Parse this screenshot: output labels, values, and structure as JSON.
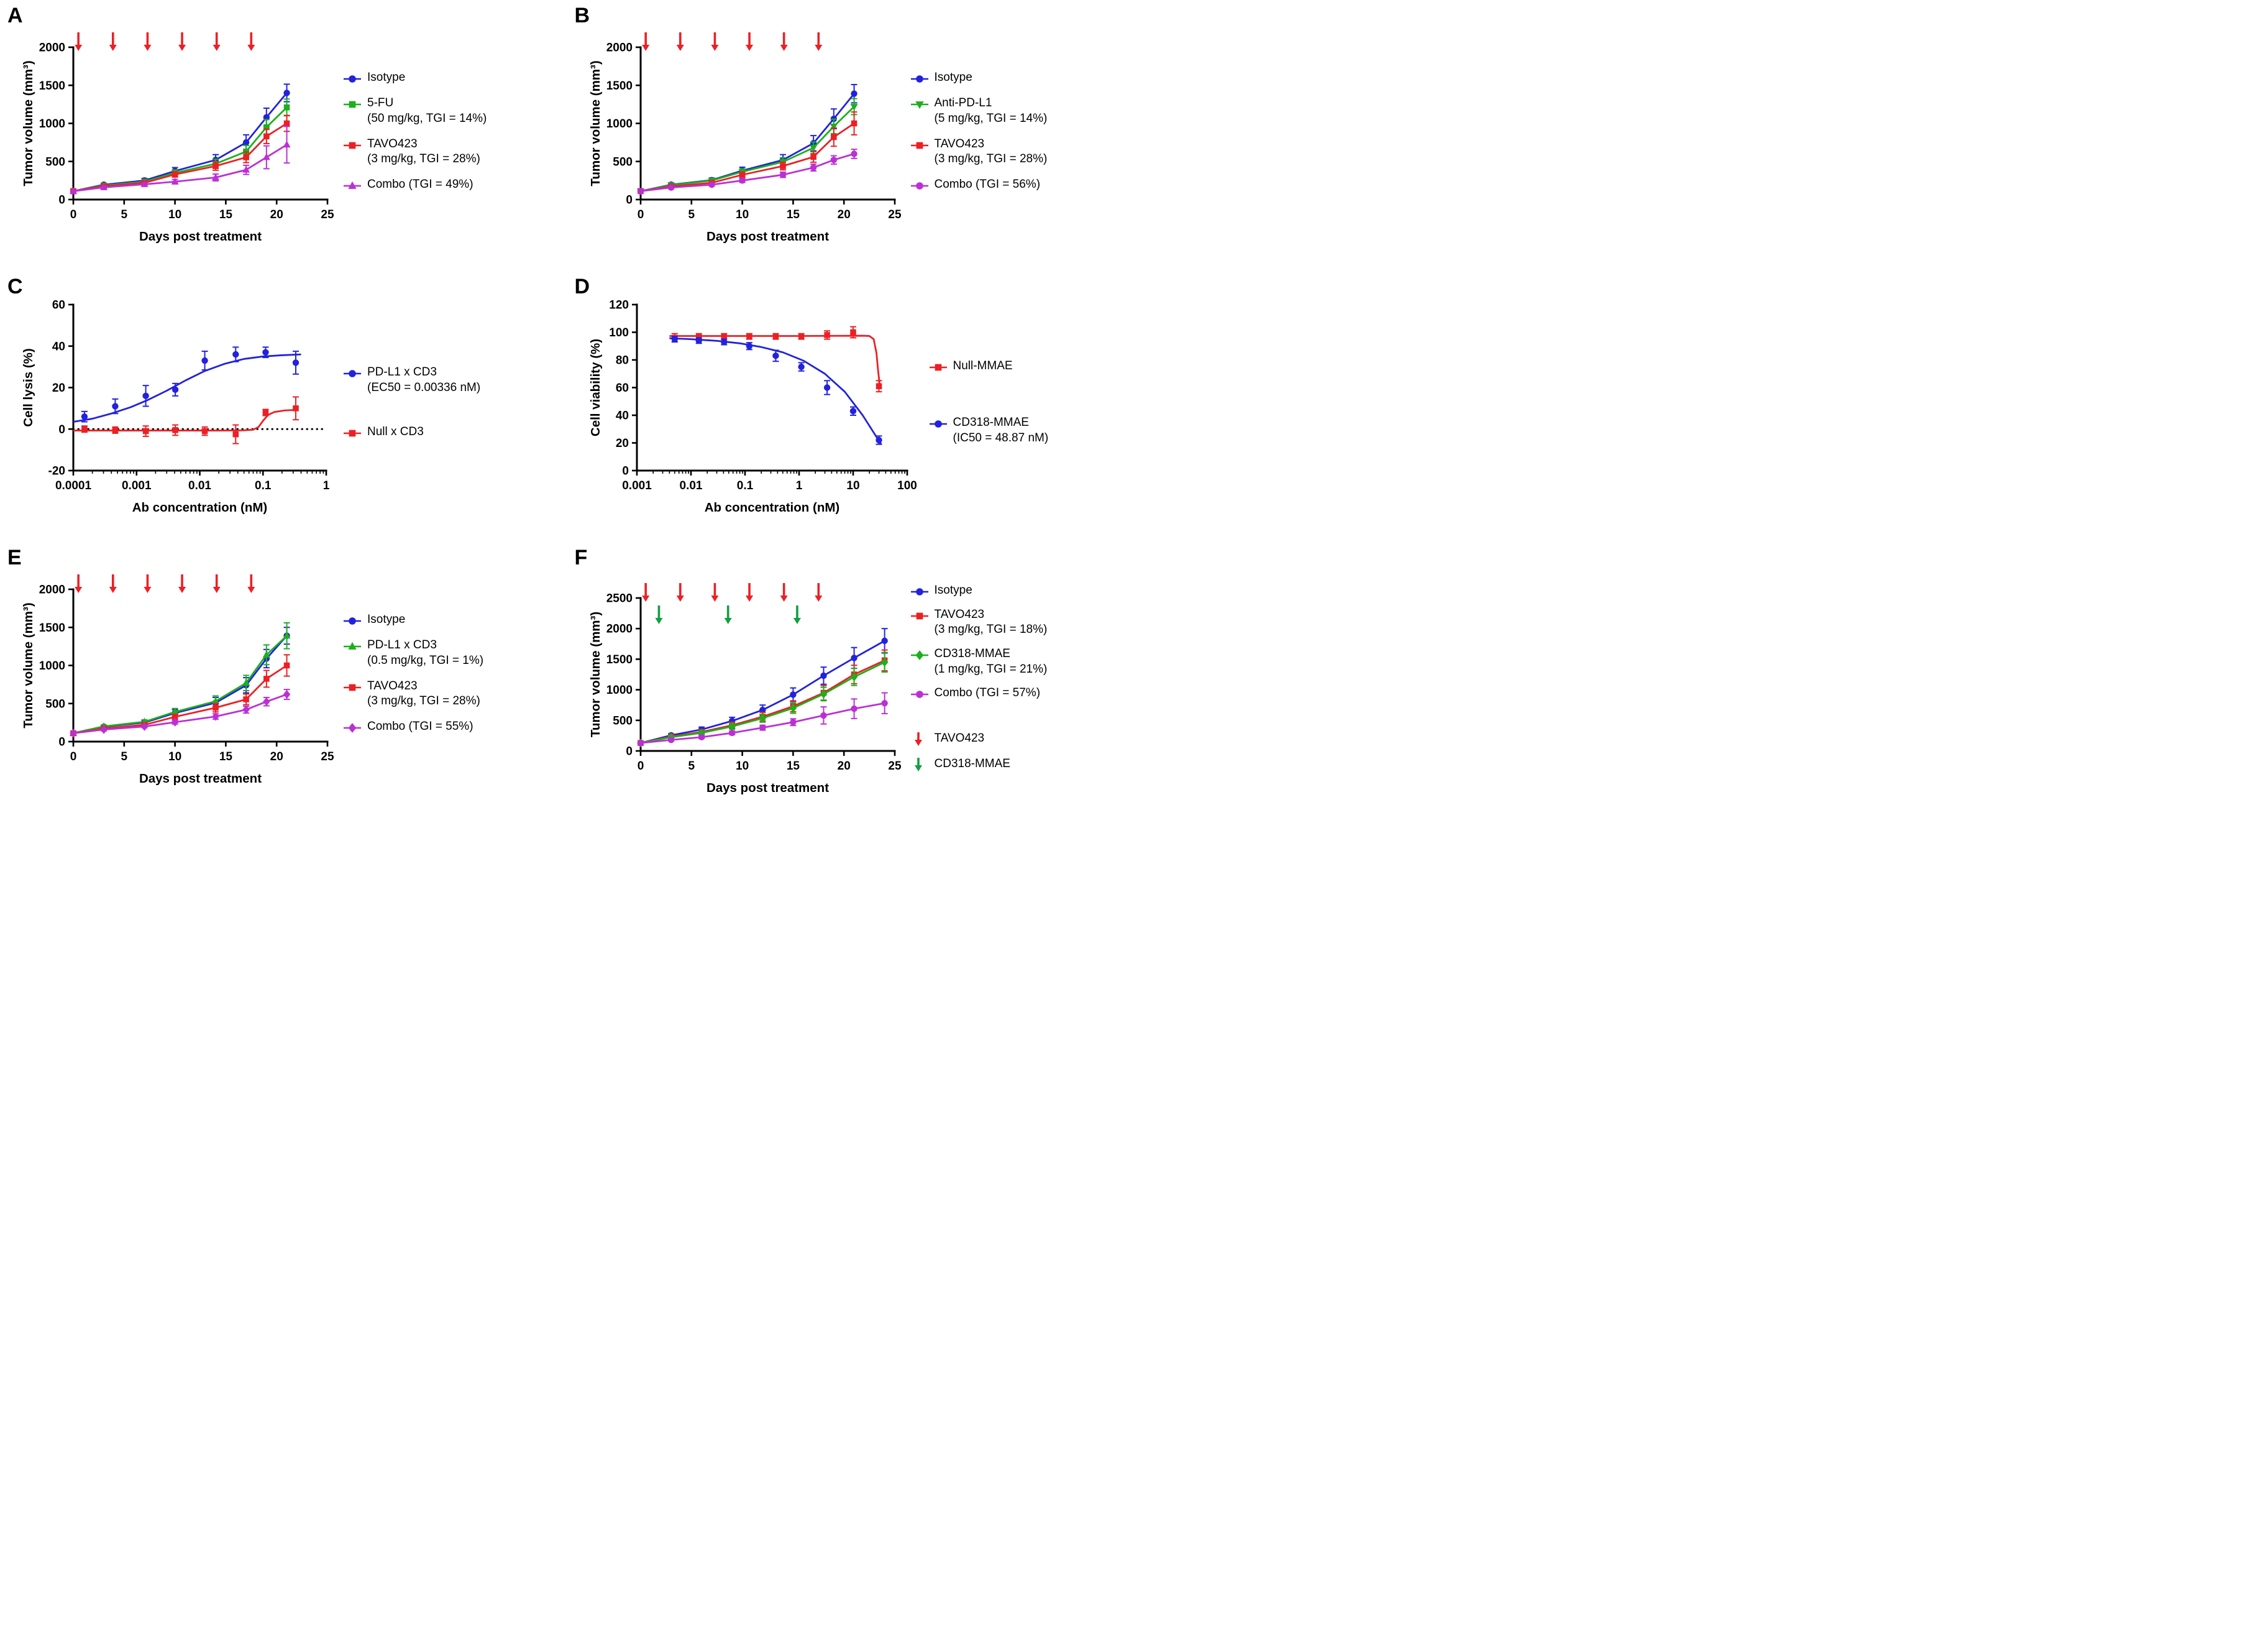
{
  "colors": {
    "blue": "#2222dd",
    "green": "#1cb01c",
    "red": "#ec2024",
    "magenta": "#bb30d5",
    "arrow_green": "#129e44",
    "black": "#000000"
  },
  "chart_data": [
    {
      "letter": "A",
      "type": "line",
      "xlabel": "Days post treatment",
      "ylabel": "Tumor volume (mm³)",
      "xaxis": {
        "type": "linear",
        "min": 0,
        "max": 25,
        "ticks": [
          0,
          5,
          10,
          15,
          20,
          25
        ]
      },
      "yaxis": {
        "min": 0,
        "max": 2000,
        "ticks": [
          0,
          500,
          1000,
          1500,
          2000
        ]
      },
      "dose_arrows": [
        {
          "color": "red",
          "row": 0,
          "x": [
            0.5,
            3.9,
            7.3,
            10.7,
            14.1,
            17.5
          ]
        }
      ],
      "x": [
        0,
        3,
        7,
        10,
        14,
        17,
        19,
        21
      ],
      "series": [
        {
          "name": "Isotype",
          "legend": [
            "Isotype"
          ],
          "color": "blue",
          "marker": "circle",
          "connect": true,
          "values": [
            110,
            195,
            250,
            375,
            520,
            750,
            1080,
            1400
          ],
          "errors": [
            15,
            20,
            28,
            45,
            70,
            100,
            120,
            115
          ]
        },
        {
          "name": "5-FU",
          "legend": [
            "5-FU",
            "(50 mg/kg, TGI = 14%)"
          ],
          "color": "green",
          "marker": "square",
          "connect": true,
          "values": [
            110,
            185,
            235,
            350,
            470,
            630,
            950,
            1210
          ],
          "errors": [
            15,
            18,
            25,
            40,
            60,
            80,
            100,
            110
          ]
        },
        {
          "name": "TAVO423",
          "legend": [
            "TAVO423",
            "(3 mg/kg, TGI = 28%)"
          ],
          "color": "red",
          "marker": "square",
          "connect": true,
          "values": [
            110,
            175,
            220,
            330,
            440,
            555,
            830,
            1000
          ],
          "errors": [
            15,
            16,
            22,
            35,
            55,
            70,
            95,
            105
          ]
        },
        {
          "name": "Combo",
          "legend": [
            "Combo (TGI = 49%)"
          ],
          "color": "magenta",
          "marker": "triangle-up",
          "connect": true,
          "values": [
            110,
            160,
            200,
            235,
            290,
            390,
            555,
            720
          ],
          "errors": [
            12,
            14,
            18,
            30,
            45,
            60,
            150,
            240
          ]
        }
      ],
      "size": [
        515,
        375
      ],
      "margins": {
        "l": 88,
        "r": 18,
        "t": 52,
        "b": 78
      },
      "legend_gap": 16
    },
    {
      "letter": "B",
      "type": "line",
      "xlabel": "Days post treatment",
      "ylabel": "Tumor volume (mm³)",
      "xaxis": {
        "type": "linear",
        "min": 0,
        "max": 25,
        "ticks": [
          0,
          5,
          10,
          15,
          20,
          25
        ]
      },
      "yaxis": {
        "min": 0,
        "max": 2000,
        "ticks": [
          0,
          500,
          1000,
          1500,
          2000
        ]
      },
      "dose_arrows": [
        {
          "color": "red",
          "row": 0,
          "x": [
            0.5,
            3.9,
            7.3,
            10.7,
            14.1,
            17.5
          ]
        }
      ],
      "x": [
        0,
        3,
        7,
        10,
        14,
        17,
        19,
        21
      ],
      "series": [
        {
          "name": "Isotype",
          "legend": [
            "Isotype"
          ],
          "color": "blue",
          "marker": "circle",
          "connect": true,
          "values": [
            110,
            195,
            255,
            380,
            520,
            740,
            1060,
            1390
          ],
          "errors": [
            15,
            20,
            28,
            45,
            70,
            100,
            130,
            120
          ]
        },
        {
          "name": "Anti-PD-L1",
          "legend": [
            "Anti-PD-L1",
            "(5 mg/kg, TGI = 14%)"
          ],
          "color": "green",
          "marker": "triangle-down",
          "connect": true,
          "values": [
            110,
            190,
            250,
            365,
            495,
            680,
            960,
            1220
          ],
          "errors": [
            14,
            18,
            24,
            38,
            55,
            75,
            95,
            105
          ]
        },
        {
          "name": "TAVO423",
          "legend": [
            "TAVO423",
            "(3 mg/kg, TGI = 28%)"
          ],
          "color": "red",
          "marker": "square",
          "connect": true,
          "values": [
            110,
            172,
            220,
            325,
            440,
            560,
            820,
            1000
          ],
          "errors": [
            14,
            16,
            20,
            35,
            50,
            70,
            120,
            150
          ]
        },
        {
          "name": "Combo",
          "legend": [
            "Combo (TGI = 56%)"
          ],
          "color": "magenta",
          "marker": "circle",
          "connect": true,
          "values": [
            110,
            158,
            195,
            250,
            325,
            420,
            520,
            600
          ],
          "errors": [
            12,
            13,
            16,
            25,
            35,
            45,
            55,
            60
          ]
        }
      ],
      "size": [
        515,
        375
      ],
      "margins": {
        "l": 88,
        "r": 18,
        "t": 52,
        "b": 78
      },
      "legend_gap": 16
    },
    {
      "letter": "C",
      "type": "scatter-fit",
      "xlabel": "Ab concentration (nM)",
      "ylabel": "Cell lysis (%)",
      "xaxis": {
        "type": "log",
        "min": 0.0001,
        "max": 1,
        "ticks": [
          "0.0001",
          "0.001",
          "0.01",
          "0.1",
          "1"
        ]
      },
      "yaxis": {
        "min": -20,
        "max": 60,
        "ticks": [
          -20,
          0,
          20,
          40,
          60
        ]
      },
      "x": [
        0.00015,
        0.00046,
        0.0014,
        0.0041,
        0.012,
        0.037,
        0.11,
        0.33
      ],
      "lines": [
        {
          "style": "dotted",
          "color": "black",
          "x": [
            0.0001,
            0.95
          ],
          "y": [
            0,
            0
          ]
        }
      ],
      "series": [
        {
          "name": "PD-L1 x CD3",
          "legend": [
            "PD-L1 x CD3",
            "(EC50 = 0.00336 nM)"
          ],
          "color": "blue",
          "marker": "circle",
          "values": [
            6,
            11,
            16,
            19,
            33,
            36,
            37,
            32
          ],
          "errors": [
            2.5,
            3.5,
            5,
            3,
            4.5,
            3.5,
            2.5,
            5.5
          ],
          "curve": {
            "x": [
              0.0001,
              0.0002,
              0.0004,
              0.0008,
              0.0015,
              0.003,
              0.006,
              0.012,
              0.025,
              0.05,
              0.1,
              0.2,
              0.4
            ],
            "y": [
              3.5,
              5,
              7.5,
              10.5,
              14,
              18.5,
              23.5,
              28,
              31.5,
              33.8,
              35,
              35.6,
              36
            ]
          }
        },
        {
          "name": "Null x CD3",
          "legend": [
            "Null x CD3"
          ],
          "color": "red",
          "marker": "square",
          "values": [
            0,
            -0.5,
            -1,
            -0.5,
            -1,
            -2.5,
            8,
            10
          ],
          "errors": [
            1.5,
            1.5,
            2.5,
            2.5,
            2,
            4.5,
            1.5,
            5.5
          ],
          "curve": {
            "x": [
              0.0001,
              0.02,
              0.05,
              0.07,
              0.085,
              0.1,
              0.12,
              0.15,
              0.22,
              0.35
            ],
            "y": [
              -0.7,
              -0.7,
              -0.6,
              -0.3,
              1,
              4,
              6.8,
              8.2,
              9,
              9.3
            ]
          }
        }
      ],
      "size": [
        515,
        375
      ],
      "margins": {
        "l": 88,
        "r": 20,
        "t": 30,
        "b": 78
      },
      "legend_gap": 46
    },
    {
      "letter": "D",
      "type": "scatter-fit",
      "xlabel": "Ab concentration (nM)",
      "ylabel": "Cell viability (%)",
      "xaxis": {
        "type": "log",
        "min": 0.001,
        "max": 100,
        "ticks": [
          "0.001",
          "0.01",
          "0.1",
          "1",
          "10",
          "100"
        ]
      },
      "yaxis": {
        "min": 0,
        "max": 120,
        "ticks": [
          0,
          20,
          40,
          60,
          80,
          100,
          120
        ]
      },
      "x": [
        0.005,
        0.014,
        0.041,
        0.12,
        0.37,
        1.1,
        3.3,
        10,
        30
      ],
      "series": [
        {
          "name": "Null-MMAE",
          "legend": [
            "Null-MMAE"
          ],
          "color": "red",
          "marker": "square",
          "values": [
            96,
            97,
            97,
            97,
            97,
            97,
            98,
            100,
            61
          ],
          "errors": [
            3,
            2,
            2,
            2,
            2,
            2,
            3,
            4,
            4
          ],
          "curve": {
            "x": [
              0.004,
              1,
              5,
              15,
              20,
              24,
              27,
              29,
              31
            ],
            "y": [
              97.3,
              97.3,
              97.4,
              97.5,
              97.3,
              95,
              85,
              72,
              62
            ]
          }
        },
        {
          "name": "CD318-MMAE",
          "legend": [
            "CD318-MMAE",
            "(IC50 = 48.87 nM)"
          ],
          "color": "blue",
          "marker": "circle",
          "values": [
            95,
            94,
            93,
            90,
            83,
            75,
            60,
            43,
            22
          ],
          "errors": [
            2,
            2,
            2,
            2.5,
            4,
            3,
            5,
            3,
            3
          ],
          "curve": {
            "x": [
              0.004,
              0.01,
              0.03,
              0.08,
              0.2,
              0.5,
              1.2,
              3,
              7,
              15,
              33
            ],
            "y": [
              95.7,
              95,
              93.8,
              92,
              89.3,
              85.5,
              79.5,
              70,
              57,
              40,
              19
            ]
          }
        }
      ],
      "size": [
        545,
        375
      ],
      "margins": {
        "l": 82,
        "r": 28,
        "t": 30,
        "b": 78
      },
      "legend_gap": 66
    },
    {
      "letter": "E",
      "type": "line",
      "xlabel": "Days post treatment",
      "ylabel": "Tumor volume (mm³)",
      "xaxis": {
        "type": "linear",
        "min": 0,
        "max": 25,
        "ticks": [
          0,
          5,
          10,
          15,
          20,
          25
        ]
      },
      "yaxis": {
        "min": 0,
        "max": 2000,
        "ticks": [
          0,
          500,
          1000,
          1500,
          2000
        ]
      },
      "dose_arrows": [
        {
          "color": "red",
          "row": 0,
          "x": [
            0.5,
            3.9,
            7.3,
            10.7,
            14.1,
            17.5
          ]
        }
      ],
      "x": [
        0,
        3,
        7,
        10,
        14,
        17,
        19,
        21
      ],
      "series": [
        {
          "name": "Isotype",
          "legend": [
            "Isotype"
          ],
          "color": "blue",
          "marker": "circle",
          "connect": true,
          "values": [
            110,
            195,
            250,
            375,
            510,
            740,
            1090,
            1390
          ],
          "errors": [
            15,
            20,
            28,
            45,
            70,
            100,
            120,
            110
          ]
        },
        {
          "name": "PD-L1 x CD3",
          "legend": [
            "PD-L1 x CD3",
            "(0.5 mg/kg, TGI = 1%)"
          ],
          "color": "green",
          "marker": "triangle-up",
          "connect": true,
          "values": [
            112,
            200,
            260,
            390,
            530,
            770,
            1140,
            1390
          ],
          "errors": [
            14,
            18,
            26,
            45,
            70,
            100,
            130,
            170
          ]
        },
        {
          "name": "TAVO423",
          "legend": [
            "TAVO423",
            "(3 mg/kg, TGI = 28%)"
          ],
          "color": "red",
          "marker": "square",
          "connect": true,
          "values": [
            110,
            172,
            220,
            325,
            445,
            555,
            825,
            1000
          ],
          "errors": [
            14,
            16,
            20,
            35,
            55,
            70,
            110,
            140
          ]
        },
        {
          "name": "Combo",
          "legend": [
            "Combo (TGI = 55%)"
          ],
          "color": "magenta",
          "marker": "diamond",
          "connect": true,
          "values": [
            110,
            158,
            198,
            255,
            330,
            420,
            525,
            620
          ],
          "errors": [
            12,
            13,
            16,
            25,
            35,
            45,
            55,
            65
          ]
        }
      ],
      "size": [
        515,
        375
      ],
      "margins": {
        "l": 88,
        "r": 18,
        "t": 52,
        "b": 78
      },
      "legend_gap": 16
    },
    {
      "letter": "F",
      "type": "line",
      "xlabel": "Days post treatment",
      "ylabel": "Tumor volume (mm³)",
      "xaxis": {
        "type": "linear",
        "min": 0,
        "max": 25,
        "ticks": [
          0,
          5,
          10,
          15,
          20,
          25
        ]
      },
      "yaxis": {
        "min": 0,
        "max": 2500,
        "ticks": [
          0,
          500,
          1000,
          1500,
          2000,
          2500
        ]
      },
      "dose_arrows": [
        {
          "color": "red",
          "row": 0,
          "x": [
            0.5,
            3.9,
            7.3,
            10.7,
            14.1,
            17.5
          ]
        },
        {
          "color": "arrow_green",
          "row": 1,
          "x": [
            1.8,
            8.6,
            15.4
          ]
        }
      ],
      "x": [
        0,
        3,
        6,
        9,
        12,
        15,
        18,
        21,
        24
      ],
      "series": [
        {
          "name": "Isotype",
          "legend": [
            "Isotype"
          ],
          "color": "blue",
          "marker": "circle",
          "connect": true,
          "values": [
            130,
            255,
            350,
            490,
            670,
            920,
            1230,
            1520,
            1800
          ],
          "errors": [
            15,
            25,
            40,
            60,
            80,
            110,
            140,
            170,
            200
          ]
        },
        {
          "name": "TAVO423",
          "legend": [
            "TAVO423",
            "(3 mg/kg, TGI = 18%)"
          ],
          "color": "red",
          "marker": "square",
          "connect": true,
          "values": [
            130,
            235,
            310,
            420,
            560,
            730,
            950,
            1250,
            1480
          ],
          "errors": [
            15,
            22,
            35,
            50,
            70,
            90,
            120,
            150,
            170
          ]
        },
        {
          "name": "CD318-MMAE",
          "legend": [
            "CD318-MMAE",
            "(1 mg/kg, TGI = 21%)"
          ],
          "color": "green",
          "marker": "diamond",
          "connect": true,
          "values": [
            130,
            225,
            295,
            400,
            535,
            700,
            930,
            1210,
            1450
          ],
          "errors": [
            15,
            20,
            30,
            45,
            65,
            85,
            110,
            140,
            160
          ]
        },
        {
          "name": "Combo",
          "legend": [
            "Combo (TGI = 57%)"
          ],
          "color": "magenta",
          "marker": "circle",
          "connect": true,
          "values": [
            130,
            180,
            225,
            295,
            380,
            470,
            580,
            690,
            780
          ],
          "errors": [
            12,
            16,
            22,
            30,
            40,
            55,
            140,
            160,
            170
          ]
        }
      ],
      "arrow_legend": [
        {
          "color": "red",
          "label": "TAVO423"
        },
        {
          "color": "arrow_green",
          "label": "CD318-MMAE"
        }
      ],
      "size": [
        515,
        390
      ],
      "margins": {
        "l": 88,
        "r": 18,
        "t": 66,
        "b": 78
      },
      "legend_gap": 14
    }
  ]
}
